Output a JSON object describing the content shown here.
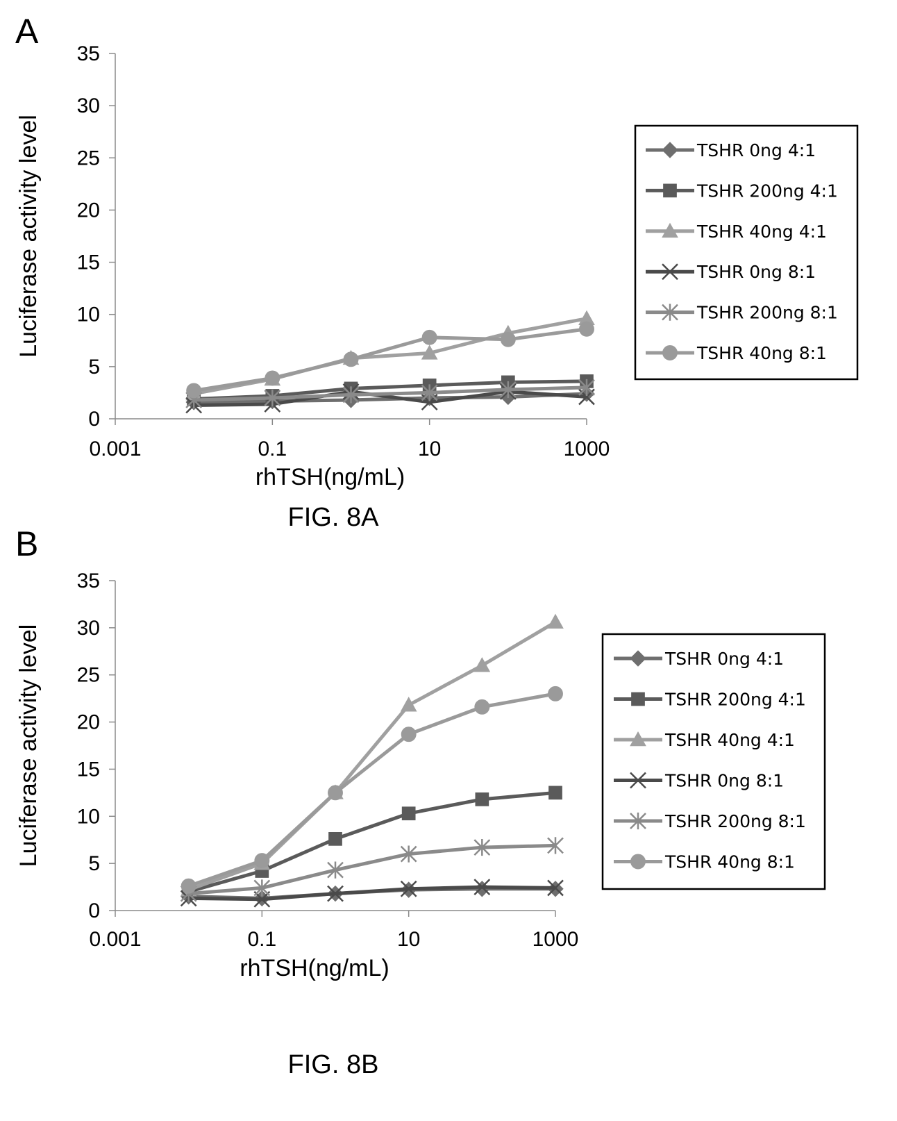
{
  "chart_data": [
    {
      "type": "line",
      "panel_letter": "A",
      "caption": "FIG. 8A",
      "xlabel": "rhTSH(ng/mL)",
      "ylabel": "Luciferase activity level",
      "xscale": "log",
      "xlim": [
        0.001,
        1000
      ],
      "ylim": [
        0,
        35
      ],
      "yticks": [
        "0",
        "5",
        "10",
        "15",
        "20",
        "25",
        "30",
        "35"
      ],
      "xticks": [
        "0.001",
        "0.1",
        "10",
        "1000"
      ],
      "legend_position": "right",
      "x": [
        0.01,
        0.1,
        1,
        10,
        100,
        1000
      ],
      "series": [
        {
          "name": "TSHR 0ng 4:1",
          "marker": "diamond",
          "color": "#6e6e6e",
          "values": [
            1.6,
            1.7,
            1.8,
            2.0,
            2.1,
            2.4
          ]
        },
        {
          "name": "TSHR 200ng 4:1",
          "marker": "square",
          "color": "#5a5a5a",
          "values": [
            1.9,
            2.2,
            2.9,
            3.2,
            3.5,
            3.6
          ]
        },
        {
          "name": "TSHR 40ng 4:1",
          "marker": "triangle",
          "color": "#a0a0a0",
          "values": [
            2.4,
            3.8,
            5.8,
            6.3,
            8.2,
            9.6
          ]
        },
        {
          "name": "TSHR 0ng 8:1",
          "marker": "x",
          "color": "#4a4a4a",
          "values": [
            1.3,
            1.4,
            2.6,
            1.6,
            2.6,
            2.1
          ]
        },
        {
          "name": "TSHR 200ng 8:1",
          "marker": "star",
          "color": "#8a8a8a",
          "values": [
            1.8,
            2.0,
            2.3,
            2.5,
            2.8,
            3.0
          ]
        },
        {
          "name": "TSHR 40ng 8:1",
          "marker": "circle",
          "color": "#9a9a9a",
          "values": [
            2.7,
            3.9,
            5.7,
            7.8,
            7.6,
            8.6
          ]
        }
      ]
    },
    {
      "type": "line",
      "panel_letter": "B",
      "caption": "FIG. 8B",
      "xlabel": "rhTSH(ng/mL)",
      "ylabel": "Luciferase activity level",
      "xscale": "log",
      "xlim": [
        0.001,
        1000
      ],
      "ylim": [
        0,
        35
      ],
      "yticks": [
        "0",
        "5",
        "10",
        "15",
        "20",
        "25",
        "30",
        "35"
      ],
      "xticks": [
        "0.001",
        "0.1",
        "10",
        "1000"
      ],
      "legend_position": "right",
      "x": [
        0.01,
        0.1,
        1,
        10,
        100,
        1000
      ],
      "series": [
        {
          "name": "TSHR 0ng 4:1",
          "marker": "diamond",
          "color": "#6e6e6e",
          "values": [
            1.5,
            1.3,
            1.8,
            2.2,
            2.3,
            2.3
          ]
        },
        {
          "name": "TSHR 200ng 4:1",
          "marker": "square",
          "color": "#5a5a5a",
          "values": [
            2.0,
            4.2,
            7.6,
            10.3,
            11.8,
            12.5
          ]
        },
        {
          "name": "TSHR 40ng 4:1",
          "marker": "triangle",
          "color": "#a0a0a0",
          "values": [
            2.2,
            5.0,
            12.5,
            21.8,
            26.0,
            30.6
          ]
        },
        {
          "name": "TSHR 0ng 8:1",
          "marker": "x",
          "color": "#4a4a4a",
          "values": [
            1.3,
            1.2,
            1.8,
            2.3,
            2.5,
            2.4
          ]
        },
        {
          "name": "TSHR 200ng 8:1",
          "marker": "star",
          "color": "#8a8a8a",
          "values": [
            1.8,
            2.4,
            4.3,
            6.0,
            6.7,
            6.9
          ]
        },
        {
          "name": "TSHR 40ng 8:1",
          "marker": "circle",
          "color": "#9a9a9a",
          "values": [
            2.6,
            5.3,
            12.5,
            18.7,
            21.6,
            23.0
          ]
        }
      ]
    }
  ]
}
